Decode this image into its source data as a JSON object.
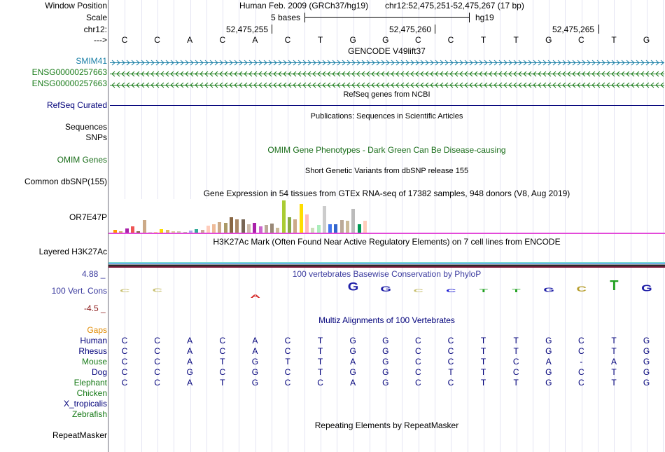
{
  "header": {
    "window_position_label": "Window Position",
    "scale_label": "Scale",
    "chrom_label": "chr12:",
    "strand_label": "--->",
    "assembly": "Human Feb. 2009 (GRCh37/hg19)",
    "position": "chr12:52,475,251-52,475,267 (17 bp)",
    "scale_text": "5 bases",
    "db": "hg19",
    "ticks": [
      "52,475,255",
      "52,475,260",
      "52,475,265"
    ]
  },
  "sequence": [
    "C",
    "C",
    "A",
    "C",
    "A",
    "C",
    "T",
    "G",
    "G",
    "C",
    "C",
    "T",
    "T",
    "G",
    "C",
    "T",
    "G"
  ],
  "gencode": {
    "title": "GENCODE V49lift37",
    "genes": [
      "SMIM41",
      "ENSG00000257663",
      "ENSG00000257663"
    ]
  },
  "refseq": {
    "title": "RefSeq genes from NCBI",
    "label": "RefSeq Curated"
  },
  "publications": {
    "title": "Publications: Sequences in Scientific Articles",
    "labels": [
      "Sequences",
      "SNPs"
    ]
  },
  "omim": {
    "title": "OMIM Gene Phenotypes - Dark Green Can Be Disease-causing",
    "label": "OMIM Genes"
  },
  "dbsnp": {
    "title": "Short Genetic Variants from dbSNP release 155",
    "label": "Common dbSNP(155)"
  },
  "gtex": {
    "title": "Gene Expression in 54 tissues from GTEx RNA-seq of 17382 samples, 948 donors (V8, Aug 2019)",
    "label": "OR7E47P",
    "bars": [
      {
        "v": 0.08,
        "c": "#ff9900"
      },
      {
        "v": 0.04,
        "c": "#ccaa66"
      },
      {
        "v": 0.12,
        "c": "#aa22aa"
      },
      {
        "v": 0.18,
        "c": "#ee5555"
      },
      {
        "v": 0.05,
        "c": "#886644"
      },
      {
        "v": 0.38,
        "c": "#ccaa88"
      },
      {
        "v": 0.02,
        "c": "#ddddcc"
      },
      {
        "v": 0.03,
        "c": "#ffdd88"
      },
      {
        "v": 0.1,
        "c": "#ffdd00"
      },
      {
        "v": 0.08,
        "c": "#ddbb66"
      },
      {
        "v": 0.04,
        "c": "#ddcc99"
      },
      {
        "v": 0.04,
        "c": "#ccccaa"
      },
      {
        "v": 0.03,
        "c": "#bbbbaa"
      },
      {
        "v": 0.06,
        "c": "#aaaaee"
      },
      {
        "v": 0.1,
        "c": "#33aa99"
      },
      {
        "v": 0.08,
        "c": "#ccaa99"
      },
      {
        "v": 0.2,
        "c": "#ffccbb"
      },
      {
        "v": 0.25,
        "c": "#eebb99"
      },
      {
        "v": 0.32,
        "c": "#ccaa88"
      },
      {
        "v": 0.3,
        "c": "#aa9966"
      },
      {
        "v": 0.45,
        "c": "#886644"
      },
      {
        "v": 0.4,
        "c": "#aa8866"
      },
      {
        "v": 0.4,
        "c": "#776655"
      },
      {
        "v": 0.25,
        "c": "#ccbbaa"
      },
      {
        "v": 0.3,
        "c": "#aa22aa"
      },
      {
        "v": 0.18,
        "c": "#cc66cc"
      },
      {
        "v": 0.22,
        "c": "#bbaa99"
      },
      {
        "v": 0.28,
        "c": "#998877"
      },
      {
        "v": 0.15,
        "c": "#ccbb99"
      },
      {
        "v": 0.95,
        "c": "#aacc33"
      },
      {
        "v": 0.45,
        "c": "#88aa44"
      },
      {
        "v": 0.4,
        "c": "#ccaa88"
      },
      {
        "v": 0.85,
        "c": "#ffdd00"
      },
      {
        "v": 0.55,
        "c": "#ffbbbb"
      },
      {
        "v": 0.15,
        "c": "#ccddbb"
      },
      {
        "v": 0.22,
        "c": "#aaeebb"
      },
      {
        "v": 0.8,
        "c": "#cccccc"
      },
      {
        "v": 0.25,
        "c": "#4477ee"
      },
      {
        "v": 0.25,
        "c": "#3366cc"
      },
      {
        "v": 0.38,
        "c": "#bbaa99"
      },
      {
        "v": 0.35,
        "c": "#ccbb99"
      },
      {
        "v": 0.7,
        "c": "#bbbbbb"
      },
      {
        "v": 0.25,
        "c": "#009955"
      },
      {
        "v": 0.35,
        "c": "#ffccbb"
      }
    ]
  },
  "h3k27ac": {
    "title": "H3K27Ac Mark (Often Found Near Active Regulatory Elements) on 7 cell lines from ENCODE",
    "label": "Layered H3K27Ac"
  },
  "phylop": {
    "title": "100 vertebrates Basewise Conservation by PhyloP",
    "label": "100 Vert. Cons",
    "max": "4.88 _",
    "min": "-4.5 _",
    "scores": [
      0.25,
      0.5,
      0,
      0,
      -0.4,
      0,
      0,
      1.2,
      0.8,
      0.3,
      0.1,
      0.1,
      0.1,
      0.6,
      0.8,
      1.4,
      0.9
    ]
  },
  "multiz": {
    "title": "Multiz Alignments of 100 Vertebrates",
    "gaps_label": "Gaps",
    "species": [
      {
        "name": "Human",
        "seq": [
          "C",
          "C",
          "A",
          "C",
          "A",
          "C",
          "T",
          "G",
          "G",
          "C",
          "C",
          "T",
          "T",
          "G",
          "C",
          "T",
          "G"
        ]
      },
      {
        "name": "Rhesus",
        "seq": [
          "C",
          "C",
          "A",
          "C",
          "A",
          "C",
          "T",
          "G",
          "G",
          "C",
          "C",
          "T",
          "T",
          "G",
          "C",
          "T",
          "G"
        ]
      },
      {
        "name": "Mouse",
        "seq": [
          "C",
          "C",
          "A",
          "T",
          "G",
          "T",
          "T",
          "A",
          "G",
          "C",
          "C",
          "T",
          "C",
          "A",
          "-",
          "A",
          "G"
        ]
      },
      {
        "name": "Dog",
        "seq": [
          "C",
          "C",
          "G",
          "C",
          "G",
          "C",
          "T",
          "G",
          "G",
          "C",
          "T",
          "T",
          "C",
          "G",
          "C",
          "T",
          "G"
        ]
      },
      {
        "name": "Elephant",
        "seq": [
          "C",
          "C",
          "A",
          "T",
          "G",
          "C",
          "C",
          "A",
          "G",
          "C",
          "C",
          "T",
          "T",
          "G",
          "C",
          "T",
          "G"
        ]
      },
      {
        "name": "Chicken",
        "seq": []
      },
      {
        "name": "X_tropicalis",
        "seq": []
      },
      {
        "name": "Zebrafish",
        "seq": []
      }
    ]
  },
  "repeatmasker": {
    "title": "Repeating Elements by RepeatMasker",
    "label": "RepeatMasker"
  },
  "colors": {
    "gencode_blue": "#1a7fa6",
    "gencode_green": "#177a17",
    "navy": "#00007a",
    "omim_green": "#1b6e1b",
    "magenta": "#e34ad9",
    "dark_red": "#8b1a1a",
    "phylop_blue": "#3a3a9e"
  }
}
